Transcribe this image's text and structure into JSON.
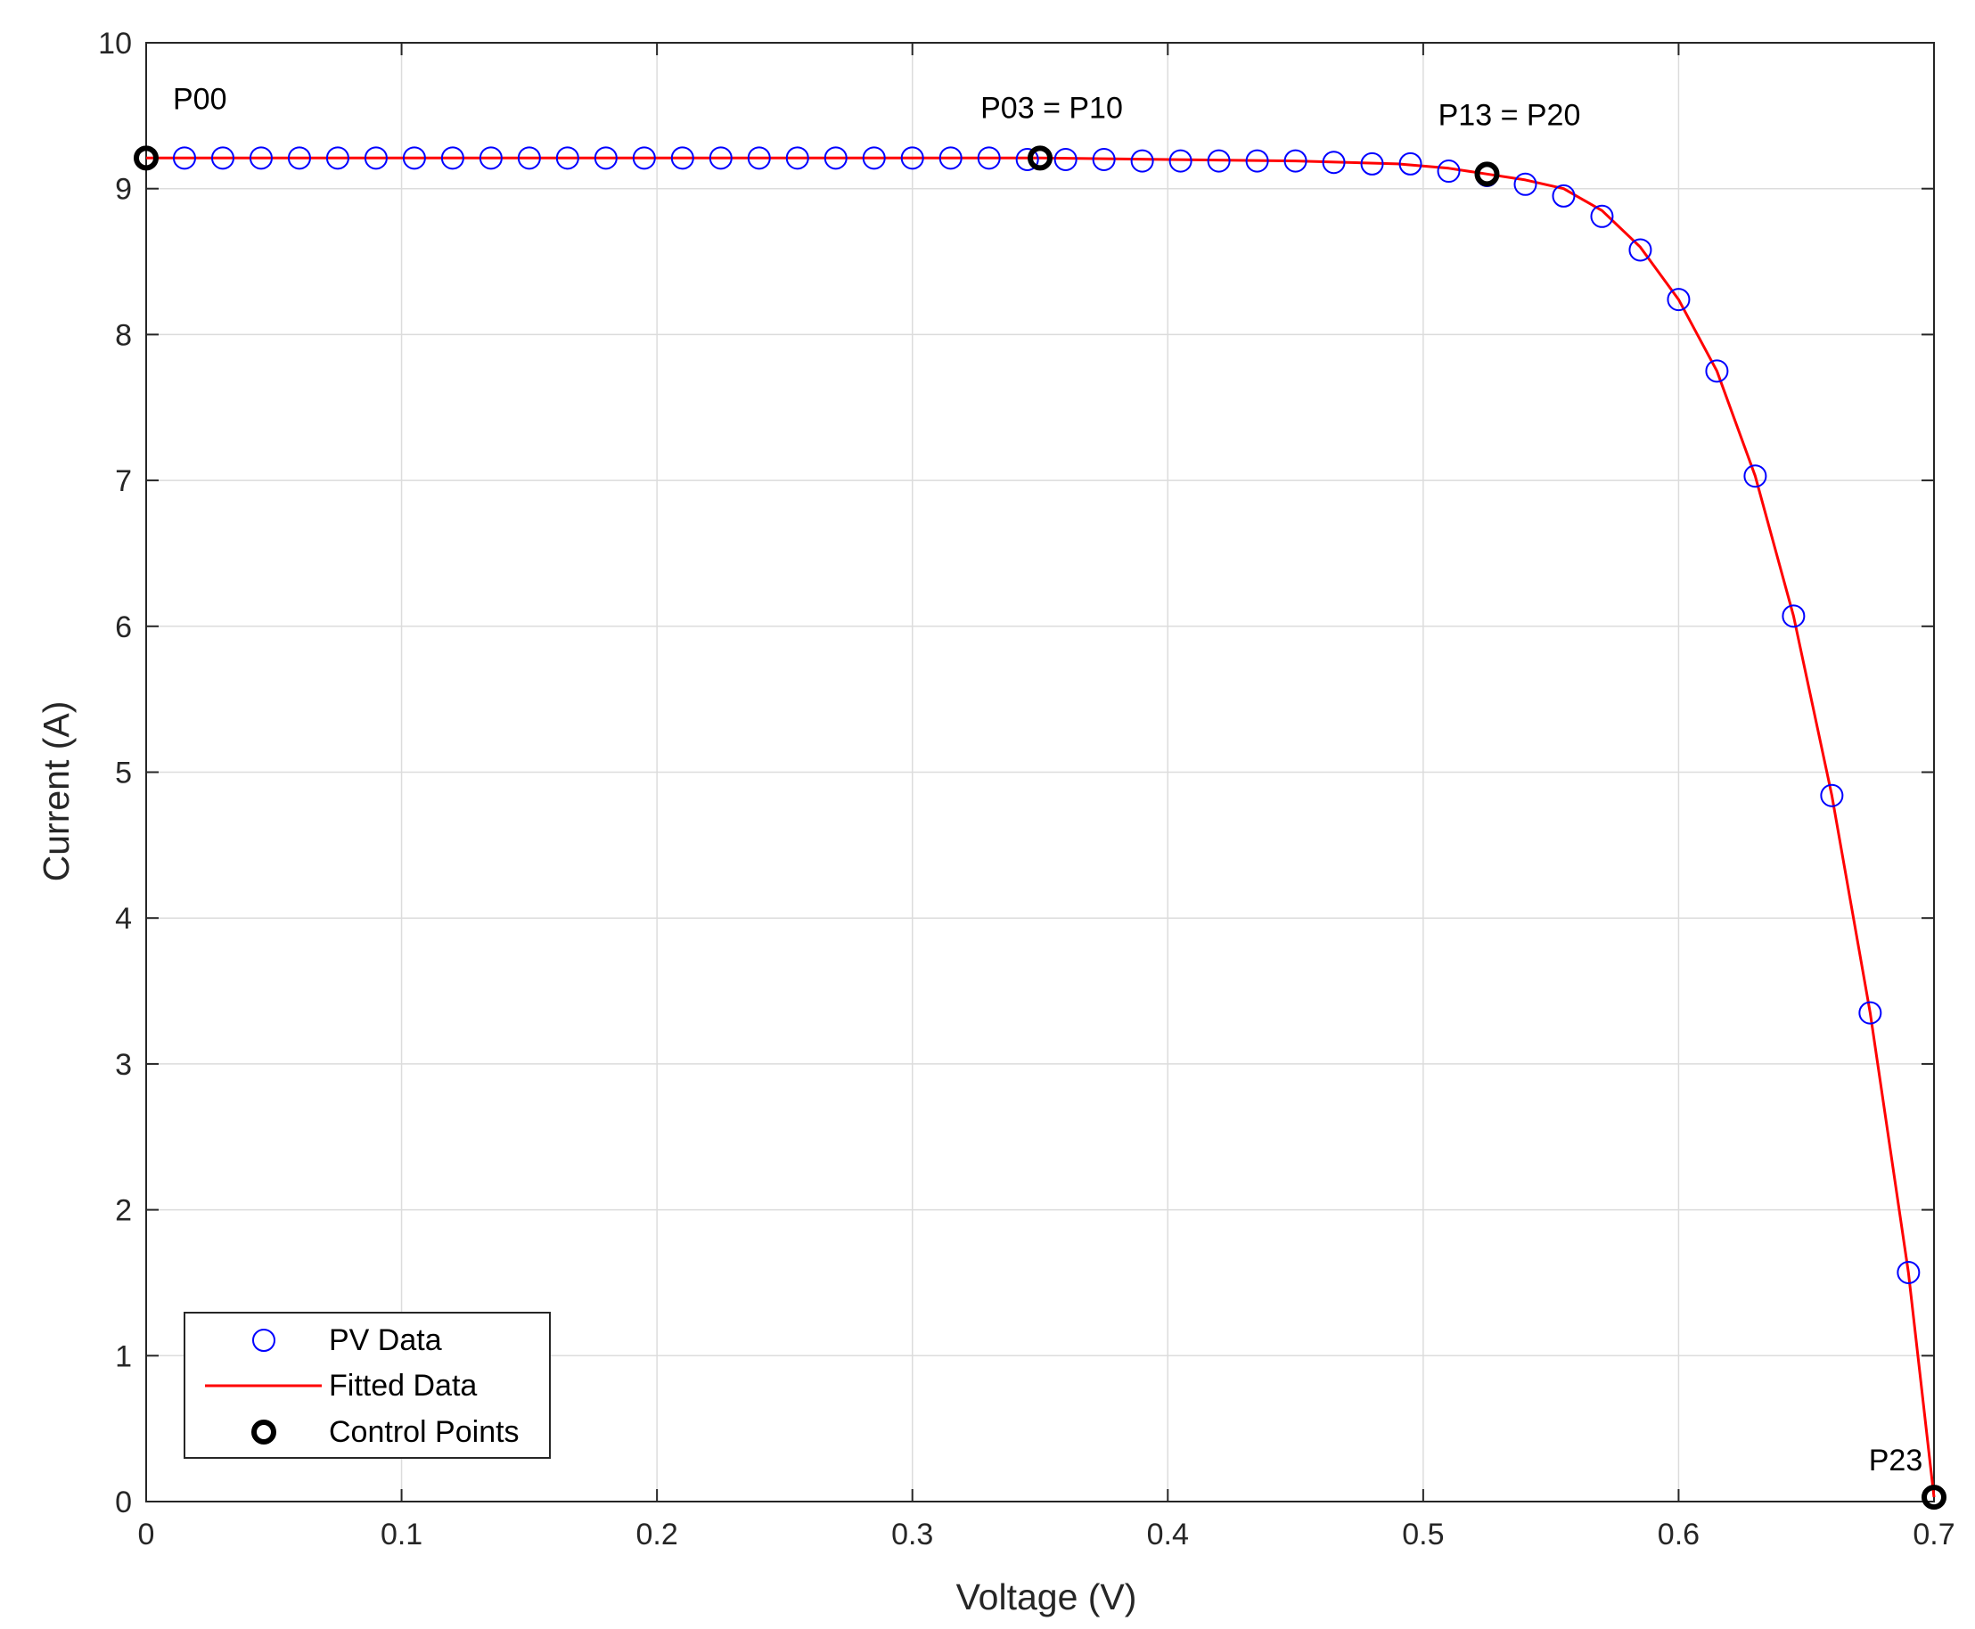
{
  "colors": {
    "pv_data": "#0000ff",
    "fitted": "#ff0000",
    "control": "#000000",
    "grid": "#dcdcdc",
    "axis": "#262626",
    "background": "#ffffff"
  },
  "chart_data": {
    "type": "scatter",
    "title": "",
    "xlabel": "Voltage (V)",
    "ylabel": "Current (A)",
    "xlim": [
      0,
      0.7
    ],
    "ylim": [
      0,
      10
    ],
    "xticks": [
      0,
      0.1,
      0.2,
      0.3,
      0.4,
      0.5,
      0.6,
      0.7
    ],
    "yticks": [
      0,
      1,
      2,
      3,
      4,
      5,
      6,
      7,
      8,
      9,
      10
    ],
    "xtick_labels": [
      "0",
      "0.1",
      "0.2",
      "0.3",
      "0.4",
      "0.5",
      "0.6",
      "0.7"
    ],
    "ytick_labels": [
      "0",
      "1",
      "2",
      "3",
      "4",
      "5",
      "6",
      "7",
      "8",
      "9",
      "10"
    ],
    "grid": true,
    "legend_position": "bottom-left",
    "series": [
      {
        "name": "PV Data",
        "marker": "open-circle",
        "x": [
          0,
          0.015,
          0.03,
          0.045,
          0.06,
          0.075,
          0.09,
          0.105,
          0.12,
          0.135,
          0.15,
          0.165,
          0.18,
          0.195,
          0.21,
          0.225,
          0.24,
          0.255,
          0.27,
          0.285,
          0.3,
          0.315,
          0.33,
          0.345,
          0.36,
          0.375,
          0.39,
          0.405,
          0.42,
          0.435,
          0.45,
          0.465,
          0.48,
          0.495,
          0.51,
          0.525,
          0.54,
          0.555,
          0.57,
          0.585,
          0.6,
          0.615,
          0.63,
          0.645,
          0.66,
          0.675,
          0.69,
          0.7
        ],
        "y": [
          9.21,
          9.21,
          9.21,
          9.21,
          9.21,
          9.21,
          9.21,
          9.21,
          9.21,
          9.21,
          9.21,
          9.21,
          9.21,
          9.21,
          9.21,
          9.21,
          9.21,
          9.21,
          9.21,
          9.21,
          9.21,
          9.21,
          9.21,
          9.2,
          9.2,
          9.2,
          9.19,
          9.19,
          9.19,
          9.19,
          9.19,
          9.18,
          9.17,
          9.17,
          9.12,
          9.09,
          9.03,
          8.95,
          8.81,
          8.58,
          8.24,
          7.75,
          7.03,
          6.07,
          4.84,
          3.35,
          1.57,
          0.03
        ]
      },
      {
        "name": "Fitted Data",
        "marker": "line",
        "x": [
          0,
          0.1,
          0.2,
          0.3,
          0.35,
          0.4,
          0.45,
          0.49,
          0.51,
          0.525,
          0.54,
          0.555,
          0.57,
          0.585,
          0.6,
          0.615,
          0.63,
          0.645,
          0.66,
          0.675,
          0.69,
          0.7
        ],
        "y": [
          9.21,
          9.21,
          9.21,
          9.21,
          9.21,
          9.2,
          9.19,
          9.17,
          9.14,
          9.1,
          9.06,
          9.0,
          8.85,
          8.6,
          8.24,
          7.75,
          7.03,
          6.07,
          4.84,
          3.35,
          1.57,
          0.03
        ]
      },
      {
        "name": "Control Points",
        "marker": "bold-circle",
        "x": [
          0,
          0.35,
          0.525,
          0.7
        ],
        "y": [
          9.21,
          9.21,
          9.1,
          0.03
        ]
      }
    ],
    "annotations": [
      {
        "text": "P00",
        "x": 0.0,
        "y": 9.21
      },
      {
        "text": "P03 = P10",
        "x": 0.35,
        "y": 9.21
      },
      {
        "text": "P13 = P20",
        "x": 0.525,
        "y": 9.1
      },
      {
        "text": "P23",
        "x": 0.7,
        "y": 0.03
      }
    ]
  }
}
